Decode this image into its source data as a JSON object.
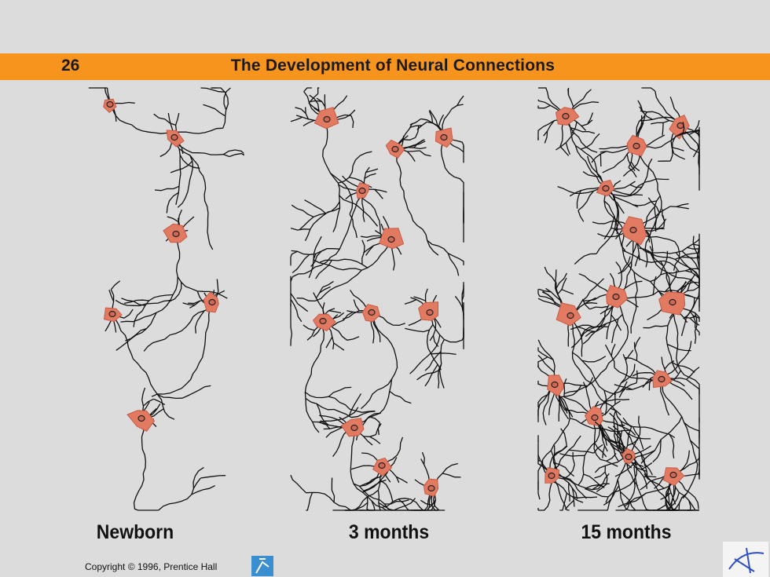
{
  "header": {
    "number": "26",
    "title": "The Development of Neural Connections"
  },
  "panels": [
    {
      "label": "Newborn"
    },
    {
      "label": "3 months"
    },
    {
      "label": "15 months"
    }
  ],
  "footer": {
    "copyright": "Copyright © 1996, Prentice Hall"
  }
}
